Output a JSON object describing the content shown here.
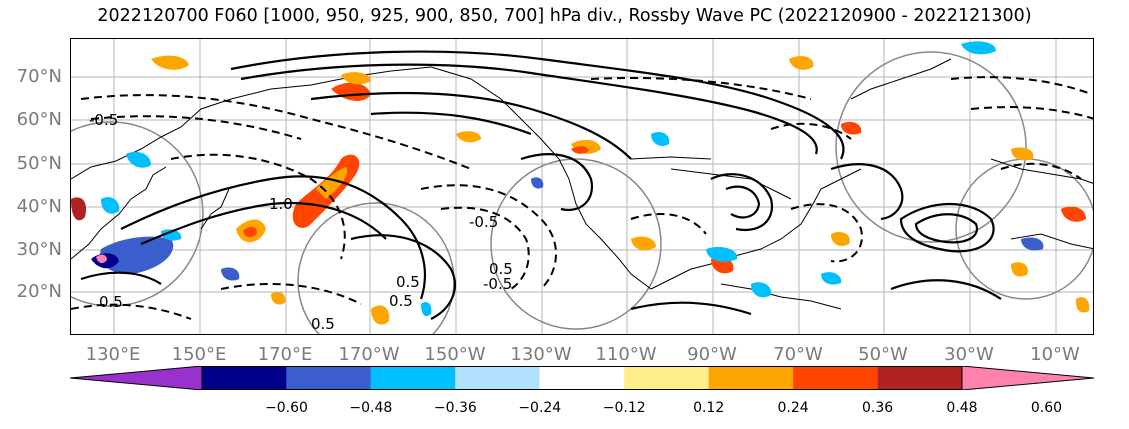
{
  "title": "2022120700 F060 [1000, 950, 925, 900, 850, 700] hPa div., Rossby Wave PC (2022120900 - 2022121300)",
  "lat_labels": [
    "70°N",
    "60°N",
    "50°N",
    "40°N",
    "30°N",
    "20°N"
  ],
  "lon_labels": [
    "130°E",
    "150°E",
    "170°E",
    "170°W",
    "150°W",
    "130°W",
    "110°W",
    "90°W",
    "70°W",
    "50°W",
    "30°W",
    "10°W"
  ],
  "contour_labels": [
    "0.5",
    "-0.5",
    "1.0",
    "0.5",
    "-0.5",
    "0.5",
    "-0.5",
    "0.5",
    "0.5"
  ],
  "colorbar": {
    "colors": [
      "#9932cc",
      "#00008b",
      "#3a5fcd",
      "#00bfff",
      "#b0e2ff",
      "#ffffff",
      "#ffec8b",
      "#ffa500",
      "#ff4500",
      "#b22222",
      "#ff82ab"
    ],
    "ticks": [
      "−0.60",
      "−0.48",
      "−0.36",
      "−0.24",
      "−0.12",
      "0.12",
      "0.24",
      "0.36",
      "0.48",
      "0.60"
    ]
  }
}
